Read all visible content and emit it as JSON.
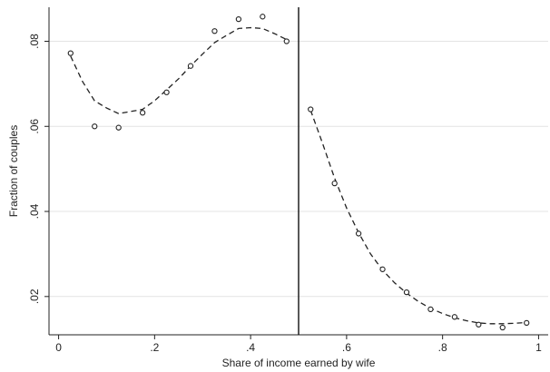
{
  "chart_data": {
    "type": "scatter",
    "xlabel": "Share of income earned by wife",
    "ylabel": "Fraction of couples",
    "xlim": [
      -0.02,
      1.02
    ],
    "ylim": [
      0.011,
      0.088
    ],
    "x_ticks": [
      0,
      0.2,
      0.4,
      0.6,
      0.8,
      1
    ],
    "x_tick_labels": [
      "0",
      ".2",
      ".4",
      ".6",
      ".8",
      "1"
    ],
    "y_ticks": [
      0.02,
      0.04,
      0.06,
      0.08
    ],
    "y_tick_labels": [
      ".02",
      ".04",
      ".06",
      ".08"
    ],
    "grid": "horizontal",
    "vertical_line_at": 0.5,
    "series": [
      {
        "marker": "hollow-circle",
        "x": [
          0.025,
          0.075,
          0.125,
          0.175,
          0.225,
          0.275,
          0.325,
          0.375,
          0.425,
          0.475,
          0.525,
          0.575,
          0.625,
          0.675,
          0.725,
          0.775,
          0.825,
          0.875,
          0.925,
          0.975
        ],
        "y": [
          0.0772,
          0.06,
          0.0597,
          0.0632,
          0.068,
          0.0742,
          0.0824,
          0.0852,
          0.0858,
          0.08,
          0.064,
          0.0466,
          0.0348,
          0.0264,
          0.021,
          0.017,
          0.0152,
          0.0134,
          0.0127,
          0.0138
        ]
      }
    ],
    "fit_lines": [
      {
        "style": "dashed",
        "x": [
          0.025,
          0.05,
          0.075,
          0.1,
          0.125,
          0.15,
          0.175,
          0.2,
          0.225,
          0.25,
          0.275,
          0.3,
          0.325,
          0.35,
          0.375,
          0.4,
          0.425,
          0.45,
          0.475
        ],
        "y": [
          0.0765,
          0.0705,
          0.066,
          0.0643,
          0.063,
          0.0635,
          0.064,
          0.066,
          0.0686,
          0.0712,
          0.0742,
          0.077,
          0.0797,
          0.0814,
          0.083,
          0.0832,
          0.083,
          0.0818,
          0.0804
        ]
      },
      {
        "style": "dashed",
        "x": [
          0.525,
          0.55,
          0.575,
          0.6,
          0.625,
          0.65,
          0.675,
          0.7,
          0.725,
          0.75,
          0.775,
          0.8,
          0.825,
          0.85,
          0.875,
          0.9,
          0.925,
          0.95,
          0.975
        ],
        "y": [
          0.0638,
          0.056,
          0.0478,
          0.0408,
          0.035,
          0.03,
          0.0262,
          0.0232,
          0.0208,
          0.0188,
          0.0172,
          0.016,
          0.015,
          0.0143,
          0.0138,
          0.0136,
          0.0136,
          0.0137,
          0.0139
        ]
      }
    ]
  }
}
